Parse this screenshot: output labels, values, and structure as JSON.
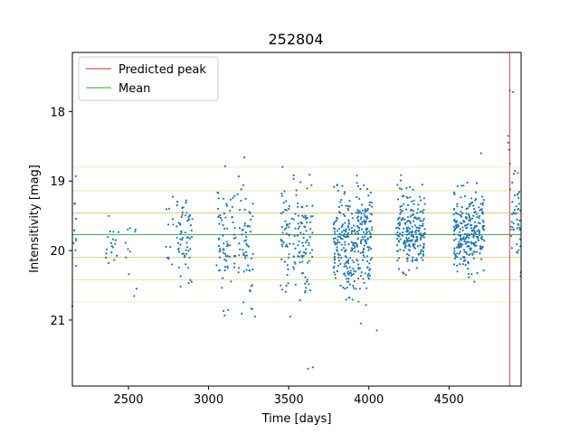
{
  "chart_data": {
    "type": "scatter",
    "title": "252804",
    "xlabel": "Time [days]",
    "ylabel": "Intensitivity [mag]",
    "xlim": [
      2150,
      4950
    ],
    "ylim": [
      21.95,
      17.15
    ],
    "y_inverted": true,
    "xticks": [
      2500,
      3000,
      3500,
      4000,
      4500
    ],
    "yticks": [
      18,
      19,
      20,
      21
    ],
    "point_color": "#1f77b4",
    "mean": 19.77,
    "mean_color": "#2ca02c",
    "sigma_bands": [
      {
        "level": 18.8,
        "color": "#e8f0c0"
      },
      {
        "level": 19.14,
        "color": "#e8e4a0"
      },
      {
        "level": 19.46,
        "color": "#e0cc70"
      },
      {
        "level": 20.1,
        "color": "#e0cc70"
      },
      {
        "level": 20.42,
        "color": "#e8e4a0"
      },
      {
        "level": 20.74,
        "color": "#e8f0c0"
      }
    ],
    "predicted_peak": 4880,
    "predicted_peak_color": "#d62728",
    "legend": {
      "position": "top-left",
      "entries": [
        {
          "label": "Predicted peak",
          "color": "#d62728"
        },
        {
          "label": "Mean",
          "color": "#2ca02c"
        }
      ]
    },
    "clusters": [
      {
        "xmin": 2150,
        "xmax": 2175,
        "mean": 19.75,
        "sd": 0.35,
        "n": 10
      },
      {
        "xmin": 2350,
        "xmax": 2440,
        "mean": 19.85,
        "sd": 0.22,
        "n": 18
      },
      {
        "xmin": 2480,
        "xmax": 2550,
        "mean": 19.95,
        "sd": 0.25,
        "n": 10
      },
      {
        "xmin": 2730,
        "xmax": 2780,
        "mean": 19.85,
        "sd": 0.35,
        "n": 12
      },
      {
        "xmin": 2800,
        "xmax": 2900,
        "mean": 19.8,
        "sd": 0.35,
        "n": 60
      },
      {
        "xmin": 3050,
        "xmax": 3280,
        "mean": 19.85,
        "sd": 0.4,
        "n": 130
      },
      {
        "xmin": 3450,
        "xmax": 3650,
        "mean": 19.85,
        "sd": 0.4,
        "n": 140
      },
      {
        "xmin": 3780,
        "xmax": 4020,
        "mean": 19.85,
        "sd": 0.35,
        "n": 320
      },
      {
        "xmin": 4170,
        "xmax": 4350,
        "mean": 19.72,
        "sd": 0.28,
        "n": 220
      },
      {
        "xmin": 4530,
        "xmax": 4720,
        "mean": 19.75,
        "sd": 0.28,
        "n": 260
      },
      {
        "xmin": 4880,
        "xmax": 4950,
        "mean": 19.55,
        "sd": 0.3,
        "n": 45
      }
    ],
    "points": [
      {
        "x": 3620,
        "y": 21.7
      },
      {
        "x": 3650,
        "y": 21.68
      },
      {
        "x": 4880,
        "y": 17.7
      },
      {
        "x": 4900,
        "y": 17.72
      },
      {
        "x": 4870,
        "y": 18.35
      },
      {
        "x": 4875,
        "y": 18.55
      },
      {
        "x": 4870,
        "y": 18.45
      },
      {
        "x": 4880,
        "y": 18.75
      },
      {
        "x": 2150,
        "y": 20.8
      },
      {
        "x": 3530,
        "y": 18.97
      },
      {
        "x": 4050,
        "y": 21.15
      },
      {
        "x": 3950,
        "y": 21.05
      },
      {
        "x": 3510,
        "y": 20.95
      },
      {
        "x": 3290,
        "y": 20.95
      },
      {
        "x": 2550,
        "y": 20.55
      },
      {
        "x": 4700,
        "y": 18.6
      }
    ]
  }
}
